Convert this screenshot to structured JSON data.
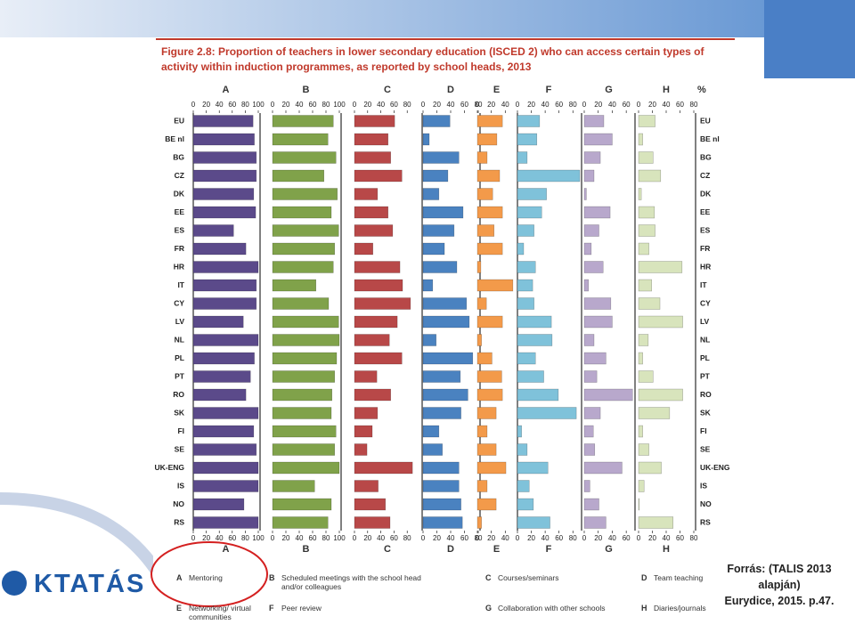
{
  "chart_data": {
    "type": "bar",
    "orientation": "horizontal",
    "title": "Figure 2.8: Proportion of teachers in lower secondary education (ISCED 2) who can access certain types of activity within induction programmes, as reported by school heads, 2013",
    "unit": "%",
    "categories": [
      "EU",
      "BE nl",
      "BG",
      "CZ",
      "DK",
      "EE",
      "ES",
      "FR",
      "HR",
      "IT",
      "CY",
      "LV",
      "NL",
      "PL",
      "PT",
      "RO",
      "SK",
      "FI",
      "SE",
      "UK-ENG",
      "IS",
      "NO",
      "RS"
    ],
    "panels": [
      {
        "name": "A",
        "label": "Mentoring",
        "color": "#5b4a8a",
        "xlim": [
          0,
          100
        ],
        "xticks": [
          0,
          20,
          40,
          60,
          80,
          100
        ],
        "values": [
          92,
          94,
          97,
          97,
          93,
          96,
          62,
          81,
          100,
          97,
          97,
          77,
          100,
          94,
          88,
          81,
          100,
          93,
          97,
          100,
          100,
          78,
          100
        ]
      },
      {
        "name": "B",
        "label": "Scheduled meetings with the school head and/or colleagues",
        "color": "#80a24a",
        "xlim": [
          0,
          100
        ],
        "xticks": [
          0,
          20,
          40,
          60,
          80,
          100
        ],
        "values": [
          91,
          83,
          95,
          77,
          97,
          88,
          99,
          93,
          91,
          65,
          84,
          99,
          100,
          96,
          93,
          89,
          88,
          95,
          93,
          100,
          63,
          88,
          83
        ]
      },
      {
        "name": "C",
        "label": "Courses/seminars",
        "color": "#b84848",
        "xlim": [
          0,
          100
        ],
        "xticks": [
          0,
          20,
          40,
          60,
          80
        ],
        "values": [
          61,
          51,
          55,
          72,
          35,
          51,
          58,
          28,
          69,
          73,
          85,
          65,
          53,
          72,
          34,
          55,
          35,
          27,
          19,
          88,
          36,
          47,
          54
        ]
      },
      {
        "name": "D",
        "label": "Team teaching",
        "color": "#4a82c0",
        "xlim": [
          0,
          80
        ],
        "xticks": [
          0,
          20,
          40,
          60,
          80
        ],
        "values": [
          39,
          9,
          52,
          36,
          23,
          58,
          45,
          31,
          49,
          14,
          63,
          67,
          19,
          72,
          54,
          65,
          55,
          23,
          28,
          52,
          52,
          55,
          57
        ]
      },
      {
        "name": "E",
        "label": "Networking/ virtual communities",
        "color": "#f39a4a",
        "xlim": [
          0,
          55
        ],
        "xticks": [
          0,
          20,
          40
        ],
        "values": [
          36,
          28,
          14,
          32,
          22,
          36,
          24,
          36,
          5,
          51,
          13,
          36,
          6,
          21,
          35,
          36,
          27,
          14,
          27,
          41,
          14,
          27,
          6
        ]
      },
      {
        "name": "F",
        "label": "Peer review",
        "color": "#7fc2da",
        "xlim": [
          0,
          90
        ],
        "xticks": [
          0,
          20,
          40,
          60,
          80
        ],
        "values": [
          32,
          28,
          14,
          90,
          42,
          35,
          24,
          9,
          26,
          22,
          24,
          49,
          50,
          26,
          38,
          59,
          85,
          6,
          14,
          44,
          17,
          23,
          47
        ]
      },
      {
        "name": "G",
        "label": "Collaboration with other schools",
        "color": "#b8a8cc",
        "xlim": [
          0,
          70
        ],
        "xticks": [
          0,
          20,
          40,
          60
        ],
        "values": [
          28,
          40,
          23,
          14,
          3,
          37,
          21,
          10,
          27,
          6,
          38,
          40,
          14,
          31,
          18,
          69,
          23,
          13,
          15,
          54,
          8,
          21,
          31
        ]
      },
      {
        "name": "H",
        "label": "Diaries/journals",
        "color": "#d8e4bc",
        "xlim": [
          0,
          80
        ],
        "xticks": [
          0,
          20,
          40,
          60,
          80
        ],
        "values": [
          24,
          6,
          21,
          32,
          4,
          23,
          24,
          15,
          63,
          19,
          31,
          64,
          14,
          6,
          21,
          64,
          45,
          6,
          15,
          33,
          8,
          1,
          50
        ]
      }
    ]
  },
  "logo": "KTATÁS",
  "source": {
    "line1": "Forrás:  (TALIS 2013",
    "line2": "alapján)",
    "line3": "Eurydice, 2015. p.47."
  }
}
